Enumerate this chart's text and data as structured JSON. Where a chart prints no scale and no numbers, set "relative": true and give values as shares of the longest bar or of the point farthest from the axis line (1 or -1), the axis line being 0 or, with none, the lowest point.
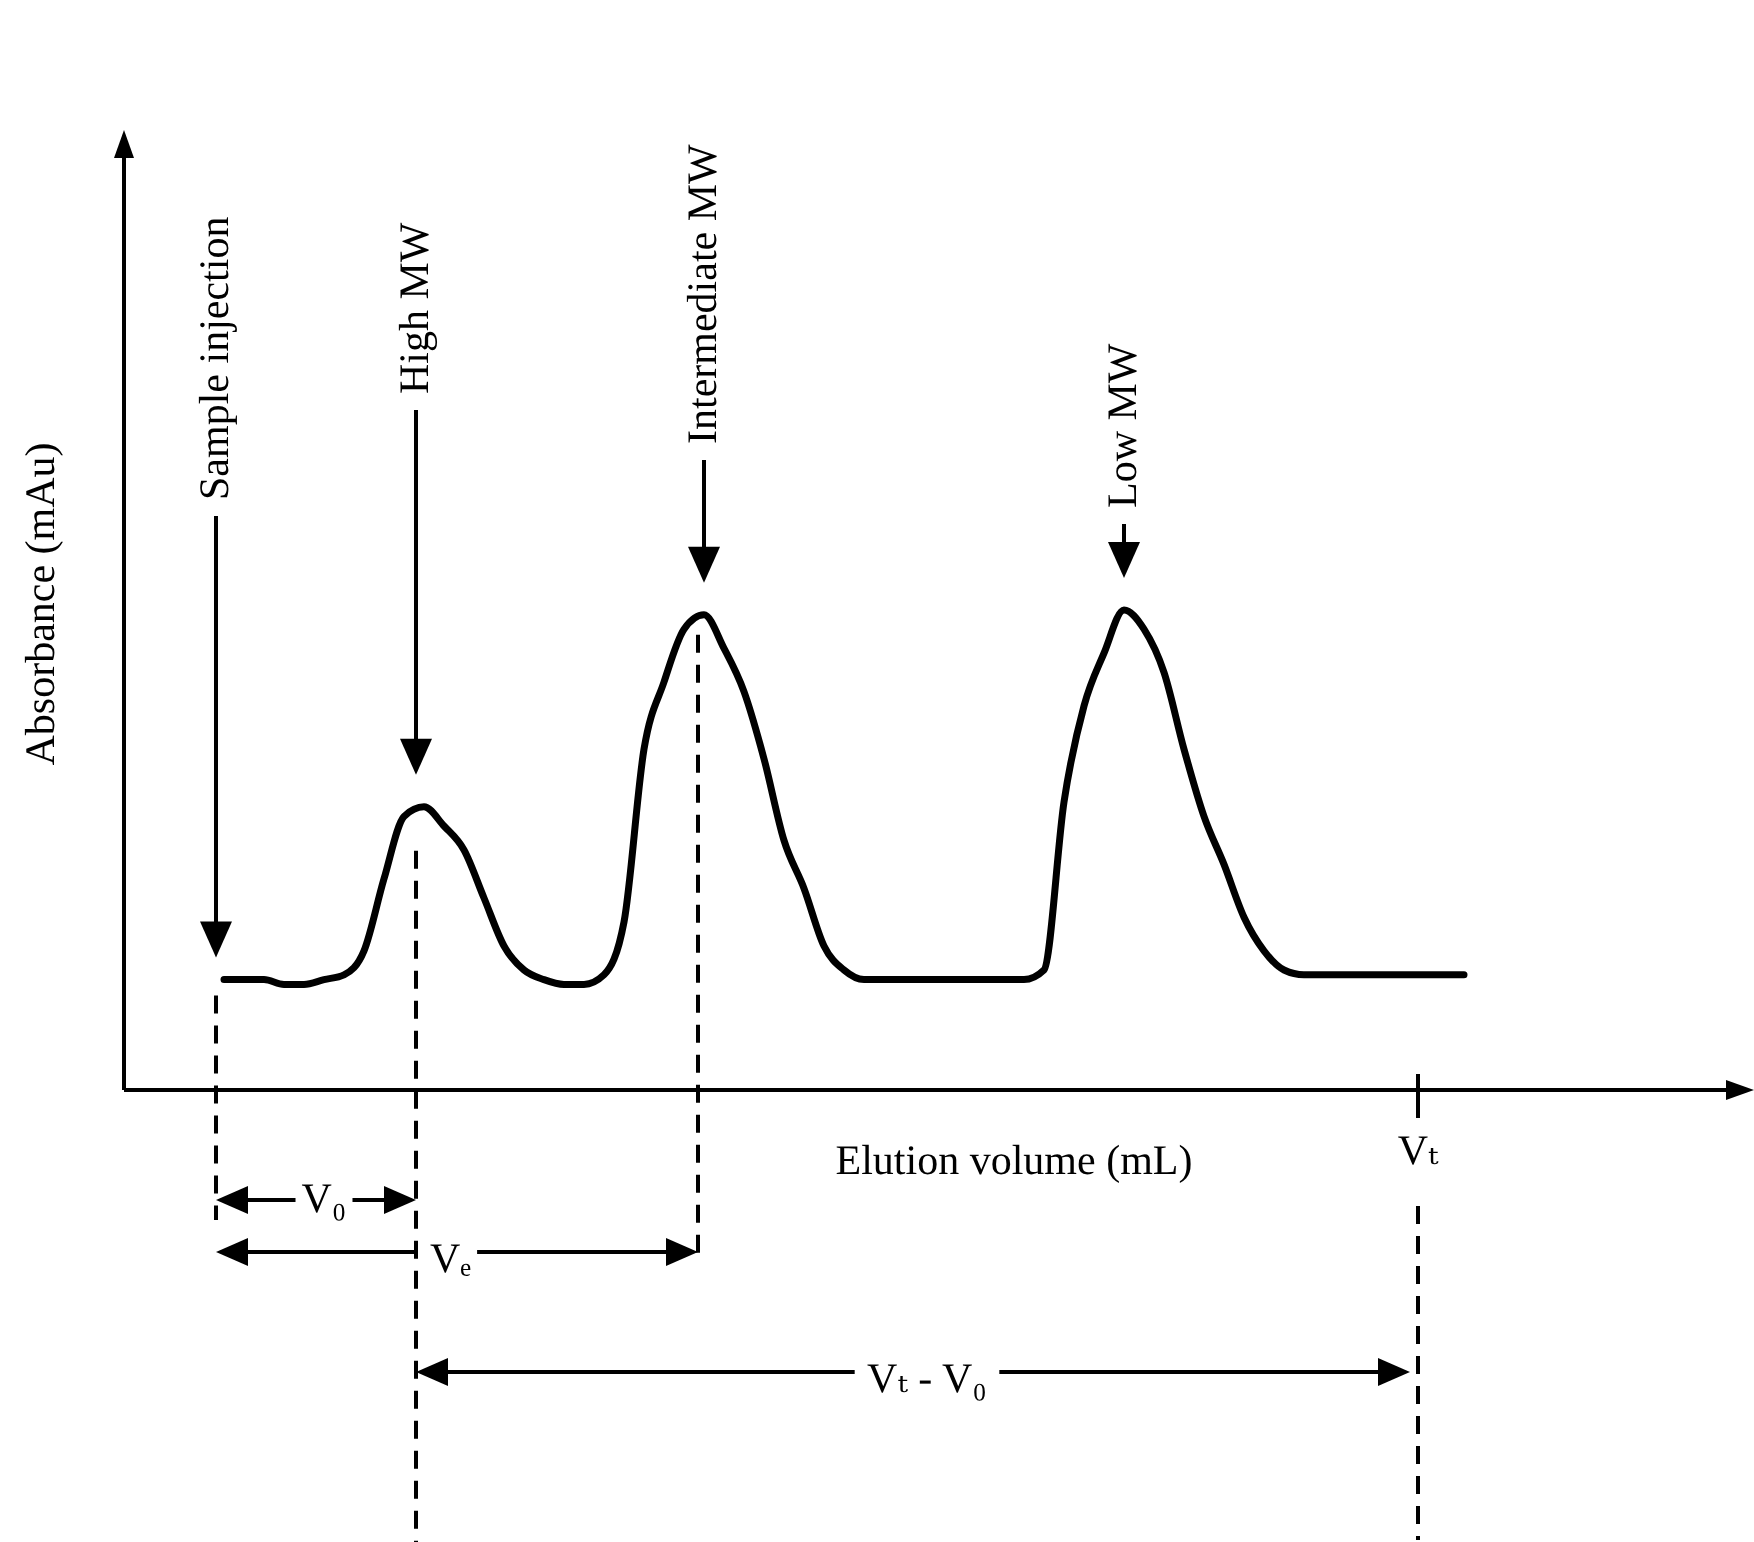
{
  "chart_data": {
    "type": "line",
    "relative": true,
    "xlabel": "Elution volume (mL)",
    "ylabel": "Absorbance (mAu)",
    "color": "#000000",
    "categories": [
      null,
      null,
      null,
      null,
      null,
      null,
      null,
      null,
      null,
      null,
      null,
      null,
      null,
      null,
      null,
      null,
      null,
      null,
      null,
      null,
      null,
      null,
      null,
      null,
      null,
      null,
      null,
      null,
      null,
      null,
      null,
      null,
      null,
      null,
      null,
      null,
      null,
      null,
      null,
      null,
      null,
      null,
      null,
      null,
      null,
      null,
      null,
      null,
      null,
      null,
      null,
      null,
      null,
      null,
      null,
      null,
      null,
      null,
      null,
      null,
      null,
      null,
      null,
      null,
      null,
      null,
      null,
      null,
      null,
      null,
      null,
      null,
      null,
      null,
      null,
      null,
      null,
      null,
      null,
      null,
      null,
      null
    ],
    "values": [
      null,
      null,
      null,
      null,
      null,
      0.23,
      0.23,
      0.23,
      0.22,
      0.22,
      0.23,
      0.24,
      0.29,
      0.44,
      0.57,
      0.59,
      0.55,
      0.5,
      0.4,
      0.3,
      0.25,
      0.23,
      0.22,
      0.22,
      0.24,
      0.35,
      0.71,
      0.85,
      0.96,
      0.99,
      0.92,
      0.83,
      0.69,
      0.52,
      0.42,
      0.3,
      0.25,
      0.23,
      0.23,
      0.23,
      0.23,
      0.23,
      0.23,
      0.23,
      0.23,
      0.23,
      0.25,
      0.6,
      0.8,
      0.91,
      1,
      0.96,
      0.87,
      0.71,
      0.57,
      0.47,
      0.36,
      0.29,
      0.25,
      0.24,
      0.24,
      0.24,
      0.24,
      0.24,
      0.24,
      0.24,
      0.24,
      0.24,
      null,
      null,
      null,
      null,
      null,
      null,
      null,
      null,
      null,
      null,
      null,
      null,
      null,
      null
    ],
    "annotations": [
      "Sample injection",
      "High MW",
      "Intermediate MW",
      "Low MW",
      "V₀",
      "Vₑ",
      "Vₜ",
      "Vₜ - V₀"
    ]
  }
}
